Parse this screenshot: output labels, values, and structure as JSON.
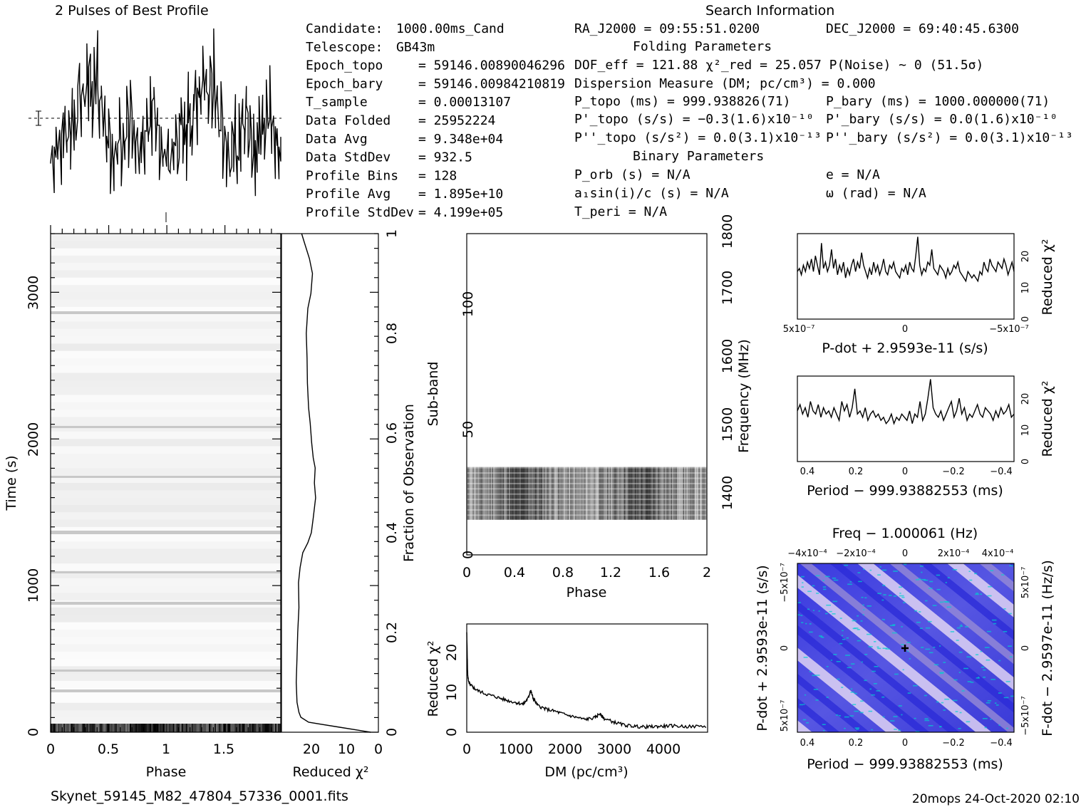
{
  "header": {
    "profile_title": "2 Pulses of Best Profile",
    "search_title": "Search Information",
    "folding_title": "Folding Parameters",
    "binary_title": "Binary Parameters"
  },
  "info_left": [
    {
      "label": "Candidate:",
      "value": "1000.00ms_Cand"
    },
    {
      "label": "Telescope:",
      "value": "GB43m"
    },
    {
      "label": "Epoch_topo",
      "value": "= 59146.00890046296"
    },
    {
      "label": "Epoch_bary",
      "value": "= 59146.00984210819"
    },
    {
      "label": "T_sample",
      "value": "=   0.00013107"
    },
    {
      "label": "Data Folded",
      "value": "=   25952224"
    },
    {
      "label": "Data Avg",
      "value": "=   9.348e+04"
    },
    {
      "label": "Data StdDev",
      "value": "=   932.5"
    },
    {
      "label": "Profile Bins",
      "value": "=   128"
    },
    {
      "label": "Profile Avg",
      "value": "=   1.895e+10"
    },
    {
      "label": "Profile StdDev",
      "value": "=   4.199e+05"
    }
  ],
  "search_info": {
    "ra": "RA_J2000 = 09:55:51.0200",
    "dec": "DEC_J2000 = 69:40:45.6300"
  },
  "folding": {
    "dof": "DOF_eff = 121.88  χ²_red = 25.057  P(Noise) ~ 0   (51.5σ)",
    "dm": "Dispersion Measure (DM; pc/cm³) = 0.000",
    "p_topo": "P_topo (ms) =  999.938826(71)",
    "p_bary": "P_bary (ms) =  1000.000000(71)",
    "pd_topo": "P'_topo (s/s) = −0.3(1.6)x10⁻¹⁰",
    "pd_bary": "P'_bary (s/s) = 0.0(1.6)x10⁻¹⁰",
    "pdd_topo": "P''_topo (s/s²) = 0.0(3.1)x10⁻¹³",
    "pdd_bary": "P''_bary (s/s²) = 0.0(3.1)x10⁻¹³"
  },
  "binary": {
    "porb": "P_orb (s) = N/A",
    "e": "e = N/A",
    "a1": "a₁sin(i)/c (s) = N/A",
    "omega": "ω (rad) = N/A",
    "tperi": "T_peri = N/A"
  },
  "footer": {
    "filename": "Skynet_59145_M82_47804_57336_0001.fits",
    "stamp": "20mops 24-Oct-2020 02:10"
  },
  "colors": {
    "ink": "#000000",
    "map_low": "#2a2ad8",
    "map_mid": "#9b8fd6",
    "map_high": "#f3e6f7",
    "map_edge": "#00d0d0"
  },
  "chart_data": [
    {
      "type": "line",
      "id": "profile",
      "title": "2 Pulses of Best Profile",
      "xlabel": "",
      "ylabel": "",
      "xlim": [
        0,
        2
      ],
      "note": "noisy pulse profile, two phase cycles",
      "values": [
        0.22,
        0.3,
        0.18,
        0.34,
        0.26,
        0.41,
        0.24,
        0.38,
        0.52,
        0.31,
        0.45,
        0.28,
        0.6,
        0.44,
        0.35,
        0.57,
        0.74,
        0.49,
        0.66,
        0.55,
        0.8,
        0.62,
        0.7,
        0.53,
        0.76,
        0.58,
        0.83,
        0.47,
        0.64,
        0.39,
        0.55,
        0.3,
        0.42,
        0.21,
        0.37,
        0.15,
        0.33,
        0.27,
        0.48,
        0.18,
        0.4,
        0.29,
        0.52,
        0.34,
        0.61,
        0.38,
        0.46,
        0.25,
        0.39,
        0.19,
        0.31,
        0.44,
        0.28,
        0.5,
        0.36,
        0.58,
        0.42,
        0.63,
        0.35,
        0.49,
        0.28,
        0.37,
        0.22,
        0.3,
        0.22,
        0.3,
        0.18,
        0.34,
        0.26,
        0.41,
        0.24,
        0.38,
        0.52,
        0.31,
        0.45,
        0.28,
        0.6,
        0.44,
        0.35,
        0.57,
        0.74,
        0.49,
        0.66,
        0.55,
        0.8,
        0.62,
        0.7,
        0.53,
        0.76,
        0.58,
        0.83,
        0.47,
        0.64,
        0.39,
        0.55,
        0.3,
        0.42,
        0.21,
        0.37,
        0.15,
        0.33,
        0.27,
        0.48,
        0.18,
        0.4,
        0.29,
        0.52,
        0.34,
        0.61,
        0.38,
        0.46,
        0.25,
        0.39,
        0.19,
        0.31,
        0.44,
        0.28,
        0.5,
        0.36,
        0.58,
        0.42,
        0.63,
        0.35,
        0.49,
        0.28,
        0.37,
        0.22,
        0.3
      ]
    },
    {
      "type": "heatmap",
      "id": "time_phase",
      "xlabel": "Phase",
      "ylabel": "Time (s)",
      "xlim": [
        0,
        2
      ],
      "ylim": [
        0,
        3400
      ],
      "x_ticks": [
        "0",
        "0.5",
        "1",
        "1.5"
      ],
      "y_ticks": [
        "0",
        "1000",
        "2000",
        "3000"
      ]
    },
    {
      "type": "line",
      "id": "time_chi2",
      "xlabel": "Reduced χ²",
      "ylabel": "Fraction of Observation",
      "xlim": [
        25,
        0
      ],
      "ylim": [
        0,
        1
      ],
      "x_ticks": [
        "20",
        "10",
        "0"
      ],
      "y_ticks": [
        "0",
        "0.2",
        "0.4",
        "0.6",
        "0.8",
        "1"
      ],
      "frac": [
        0.0,
        0.01,
        0.02,
        0.03,
        0.04,
        0.06,
        0.1,
        0.15,
        0.2,
        0.25,
        0.3,
        0.33,
        0.36,
        0.38,
        0.4,
        0.43,
        0.47,
        0.5,
        0.53,
        0.55,
        0.58,
        0.62,
        0.65,
        0.7,
        0.75,
        0.8,
        0.85,
        0.88,
        0.92,
        0.95,
        0.98,
        1.0
      ],
      "chi2": [
        2,
        10,
        18,
        20,
        20.5,
        21,
        21.2,
        21,
        20.8,
        20.5,
        20.6,
        20.2,
        19.5,
        18.2,
        17.3,
        16.8,
        16.2,
        16.5,
        16.3,
        16.8,
        17.2,
        17.6,
        18.0,
        18.3,
        18.4,
        18.6,
        18.2,
        17.4,
        17.0,
        17.8,
        19.0,
        19.8
      ]
    },
    {
      "type": "heatmap",
      "id": "subband_phase",
      "xlabel": "Phase",
      "ylabel": "Sub-band",
      "y2label": "Frequency (MHz)",
      "xlim": [
        0,
        2
      ],
      "ylim": [
        0,
        128
      ],
      "x_ticks": [
        "0",
        "0.4",
        "0.8",
        "1.2",
        "1.6",
        "2"
      ],
      "y_ticks": [
        "0",
        "50",
        "100"
      ],
      "y2_ticks": [
        "1400",
        "1500",
        "1600",
        "1700",
        "1800"
      ],
      "active_subbands": [
        14,
        35
      ]
    },
    {
      "type": "line",
      "id": "dm_chi2",
      "xlabel": "DM (pc/cm³)",
      "ylabel": "Reduced χ²",
      "xlim": [
        0,
        4900
      ],
      "ylim": [
        0,
        27
      ],
      "x_ticks": [
        "0",
        "1000",
        "2000",
        "3000",
        "4000"
      ],
      "y_ticks": [
        "0",
        "10",
        "20"
      ],
      "x": [
        0,
        20,
        50,
        100,
        200,
        400,
        600,
        800,
        1000,
        1150,
        1250,
        1300,
        1350,
        1450,
        1600,
        1800,
        2000,
        2200,
        2400,
        2600,
        2700,
        2800,
        3000,
        3200,
        3400,
        3600,
        3800,
        4000,
        4200,
        4500,
        4900
      ],
      "y": [
        25,
        14,
        12,
        11.5,
        10.5,
        9.5,
        8.8,
        8.0,
        7.4,
        7.0,
        8.5,
        10.5,
        8.5,
        6.6,
        5.8,
        5.2,
        4.4,
        3.8,
        3.2,
        3.6,
        4.6,
        3.4,
        2.5,
        1.8,
        1.5,
        1.3,
        1.4,
        1.5,
        1.6,
        1.4,
        1.5
      ]
    },
    {
      "type": "line",
      "id": "pdot_chi2",
      "xlabel": "P-dot + 2.9593e-11 (s/s)",
      "ylabel": "Reduced χ²",
      "x_ticks": [
        "5x10⁻⁷",
        "0",
        "−5x10⁻⁷"
      ],
      "y_ticks": [
        "0",
        "10",
        "20"
      ],
      "ylim": [
        0,
        27
      ],
      "values": [
        15,
        16,
        14,
        17,
        15,
        18,
        16,
        19,
        15,
        20,
        17,
        14,
        24,
        16,
        18,
        15,
        17,
        22,
        16,
        19,
        14,
        17,
        15,
        18,
        13,
        16,
        14,
        17,
        19,
        15,
        18,
        16,
        21,
        17,
        15,
        13,
        16,
        14,
        18,
        15,
        17,
        14,
        16,
        19,
        15,
        14,
        17,
        16,
        18,
        15,
        14,
        13,
        16,
        15,
        17,
        14,
        18,
        16,
        15,
        20,
        26,
        17,
        14,
        16,
        15,
        18,
        17,
        22,
        16,
        15,
        14,
        17,
        16,
        15,
        13,
        16,
        14,
        15,
        17,
        16,
        18,
        15,
        14,
        13,
        12,
        15,
        14,
        13,
        14,
        13,
        12,
        15,
        14,
        18,
        16,
        15,
        19,
        17,
        16,
        15,
        18,
        17,
        16,
        19,
        17,
        14,
        16,
        18,
        15
      ]
    },
    {
      "type": "line",
      "id": "period_chi2",
      "xlabel": "Period − 999.93882553 (ms)",
      "ylabel": "Reduced χ²",
      "x_ticks": [
        "0.4",
        "0.2",
        "0",
        "−0.2",
        "−0.4"
      ],
      "y_ticks": [
        "0",
        "10",
        "20"
      ],
      "ylim": [
        0,
        27
      ],
      "values": [
        16,
        18,
        15,
        17,
        14,
        19,
        16,
        15,
        18,
        14,
        17,
        15,
        16,
        14,
        17,
        15,
        13,
        19,
        16,
        18,
        14,
        17,
        23,
        15,
        16,
        14,
        17,
        13,
        15,
        16,
        14,
        15,
        13,
        14,
        12,
        13,
        15,
        12,
        14,
        13,
        15,
        14,
        13,
        16,
        12,
        15,
        14,
        19,
        13,
        15,
        20,
        26,
        17,
        15,
        14,
        16,
        13,
        15,
        17,
        19,
        14,
        16,
        20,
        15,
        17,
        13,
        15,
        14,
        16,
        18,
        15,
        14,
        17,
        16,
        15,
        13,
        16,
        14,
        17,
        15,
        16,
        18,
        14,
        15
      ]
    },
    {
      "type": "heatmap",
      "id": "p_pdot",
      "title": "Freq − 1.000061 (Hz)",
      "xlabel": "Period − 999.93882553 (ms)",
      "ylabel": "P-dot + 2.9593e-11 (s/s)",
      "y2label": "F-dot − 2.9597e-11 (Hz/s)",
      "x_ticks": [
        "0.4",
        "0.2",
        "0",
        "−0.2",
        "−0.4"
      ],
      "x2_ticks": [
        "−4x10⁻⁴",
        "−2x10⁻⁴",
        "0",
        "2x10⁻⁴",
        "4x10⁻⁴"
      ],
      "y_ticks": [
        "−5x10⁻⁷",
        "0",
        "5x10⁻⁷"
      ],
      "y2_ticks": [
        "5x10⁻⁷",
        "0",
        "−5x10⁻⁷"
      ]
    }
  ]
}
